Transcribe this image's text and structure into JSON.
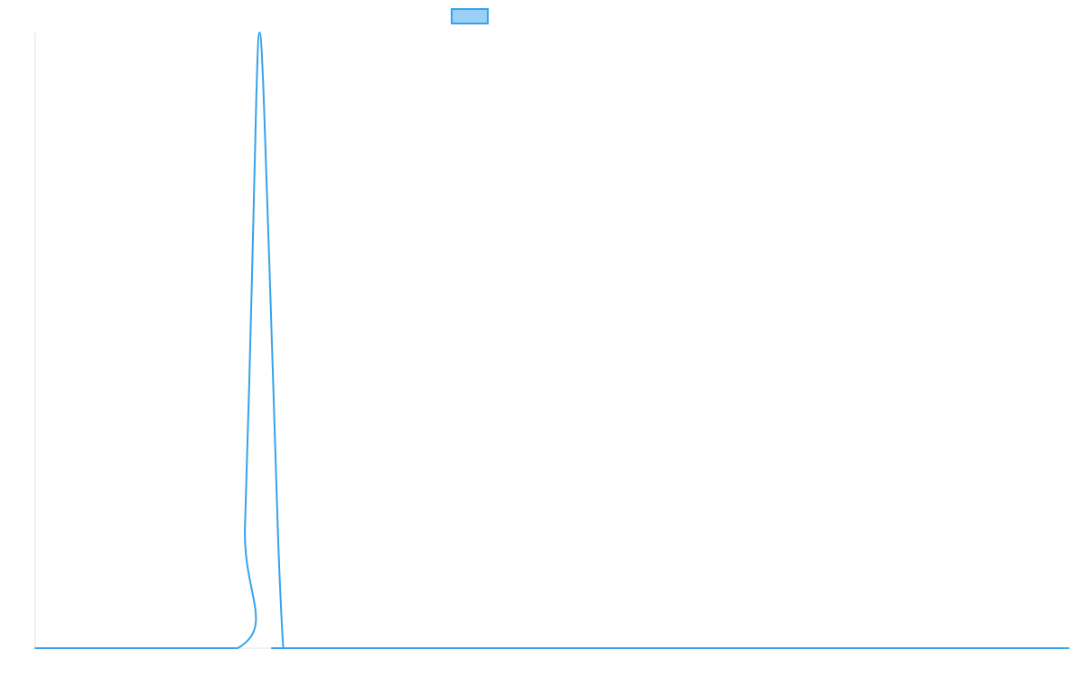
{
  "chart_data": {
    "type": "line",
    "title": "",
    "xlabel": "",
    "ylabel": "",
    "xlim": [
      0,
      100
    ],
    "ylim": [
      0,
      100
    ],
    "grid": false,
    "legend": "top-center",
    "series": [
      {
        "values_x": [
          0,
          19.6,
          20.3,
          21,
          21.4,
          21.7,
          22.1,
          22.8,
          23.5,
          24.0,
          24.2,
          40,
          60,
          80,
          100
        ],
        "values_y": [
          0,
          0,
          20,
          62,
          90,
          100,
          90,
          55,
          18,
          0,
          0,
          0,
          0,
          0,
          0
        ],
        "color": "#36a2eb",
        "fill": "#9ad0f5"
      }
    ]
  },
  "colors": {
    "axis": "#e5e5e5"
  }
}
